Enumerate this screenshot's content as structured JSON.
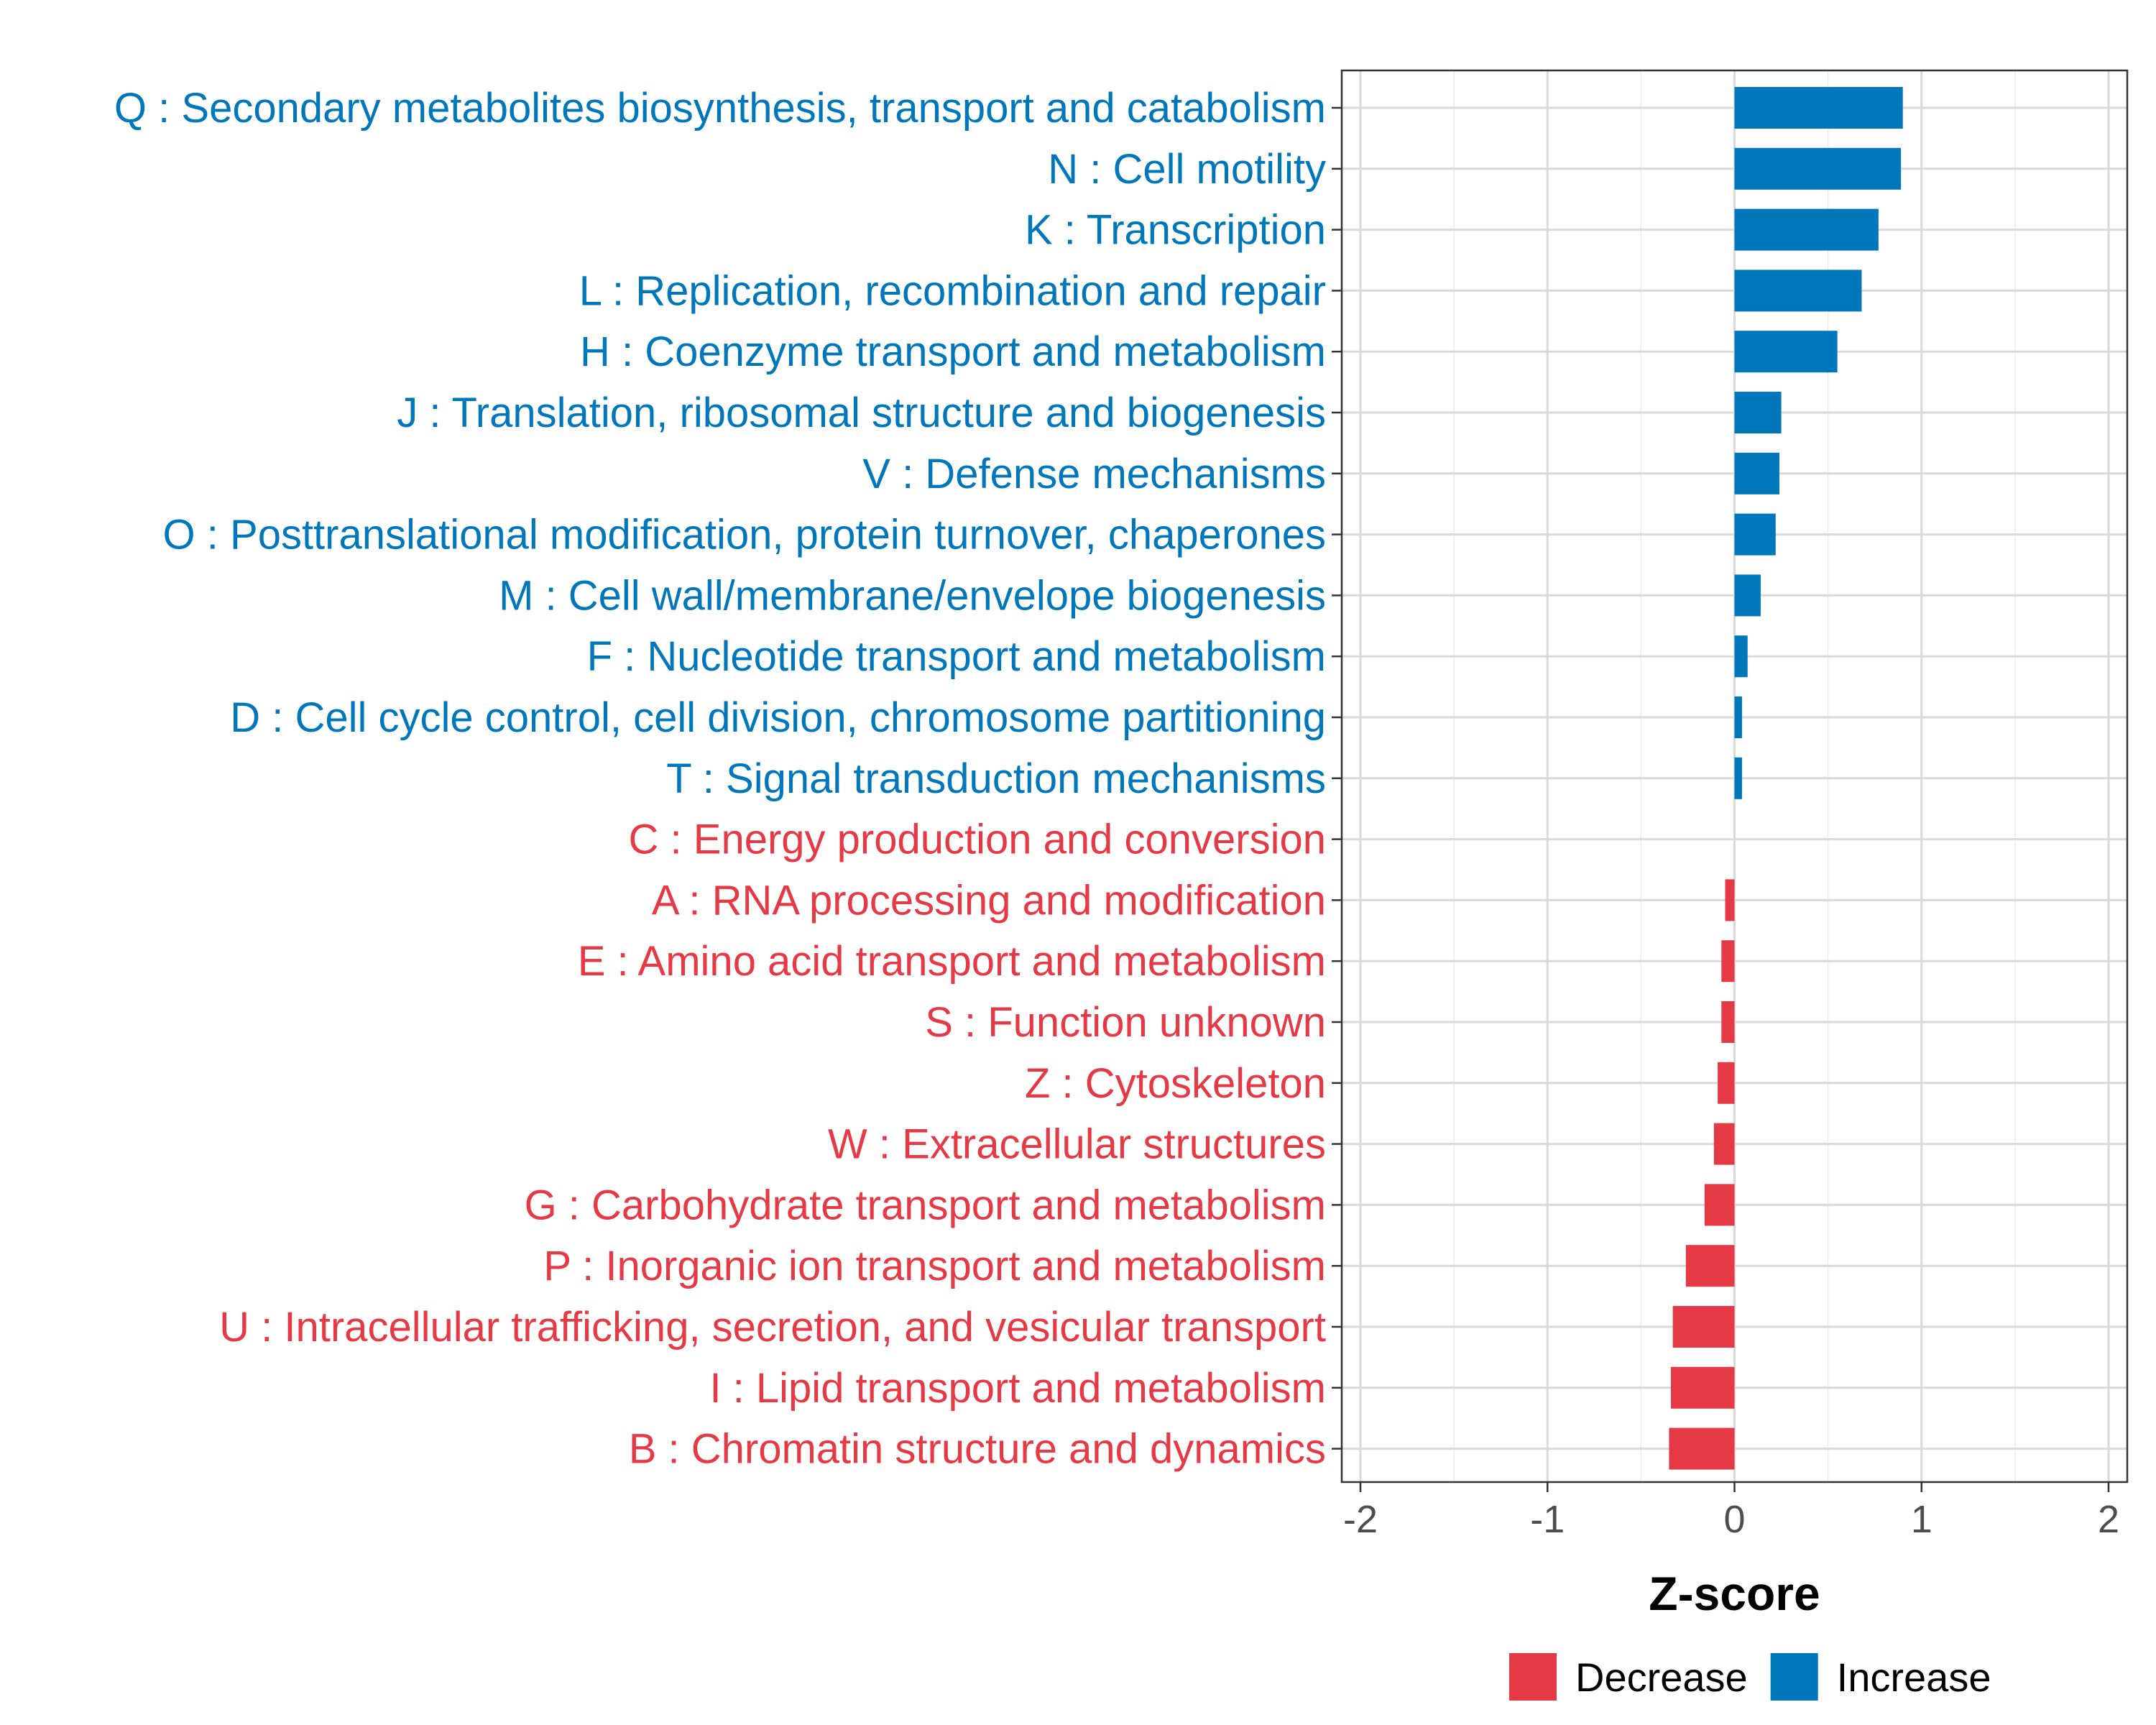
{
  "chart_data": {
    "type": "bar",
    "orientation": "horizontal",
    "title": "",
    "xlabel": "Z-score",
    "ylabel": "",
    "xlim": [
      -2.1,
      2.1
    ],
    "xticks": [
      -2,
      -1,
      0,
      1,
      2
    ],
    "xtick_labels": [
      "-2",
      "-1",
      "0",
      "1",
      "2"
    ],
    "grid": true,
    "legend_position": "bottom",
    "colors": {
      "Increase": "#0077bb",
      "Decrease": "#e63946"
    },
    "legend": [
      {
        "name": "Decrease",
        "label": "Decrease"
      },
      {
        "name": "Increase",
        "label": "Increase"
      }
    ],
    "categories": [
      "Q : Secondary metabolites biosynthesis, transport and catabolism",
      "N : Cell motility",
      "K : Transcription",
      "L : Replication, recombination and repair",
      "H : Coenzyme transport and metabolism",
      "J : Translation, ribosomal structure and biogenesis",
      "V : Defense mechanisms",
      "O : Posttranslational modification, protein turnover, chaperones",
      "M : Cell wall/membrane/envelope biogenesis",
      "F : Nucleotide transport and metabolism",
      "D : Cell cycle control, cell division, chromosome partitioning",
      "T : Signal transduction mechanisms",
      "C : Energy production and conversion",
      "A : RNA processing and modification",
      "E : Amino acid transport and metabolism",
      "S : Function unknown",
      "Z : Cytoskeleton",
      "W : Extracellular structures",
      "G : Carbohydrate transport and metabolism",
      "P : Inorganic ion transport and metabolism",
      "U : Intracellular trafficking, secretion, and vesicular transport",
      "I : Lipid transport and metabolism",
      "B : Chromatin structure and dynamics"
    ],
    "values": [
      0.9,
      0.89,
      0.77,
      0.68,
      0.55,
      0.25,
      0.24,
      0.22,
      0.14,
      0.07,
      0.04,
      0.04,
      0.0,
      -0.05,
      -0.07,
      -0.07,
      -0.09,
      -0.11,
      -0.16,
      -0.26,
      -0.33,
      -0.34,
      -0.35
    ],
    "groups": [
      "Increase",
      "Increase",
      "Increase",
      "Increase",
      "Increase",
      "Increase",
      "Increase",
      "Increase",
      "Increase",
      "Increase",
      "Increase",
      "Increase",
      "Decrease",
      "Decrease",
      "Decrease",
      "Decrease",
      "Decrease",
      "Decrease",
      "Decrease",
      "Decrease",
      "Decrease",
      "Decrease",
      "Decrease"
    ]
  }
}
